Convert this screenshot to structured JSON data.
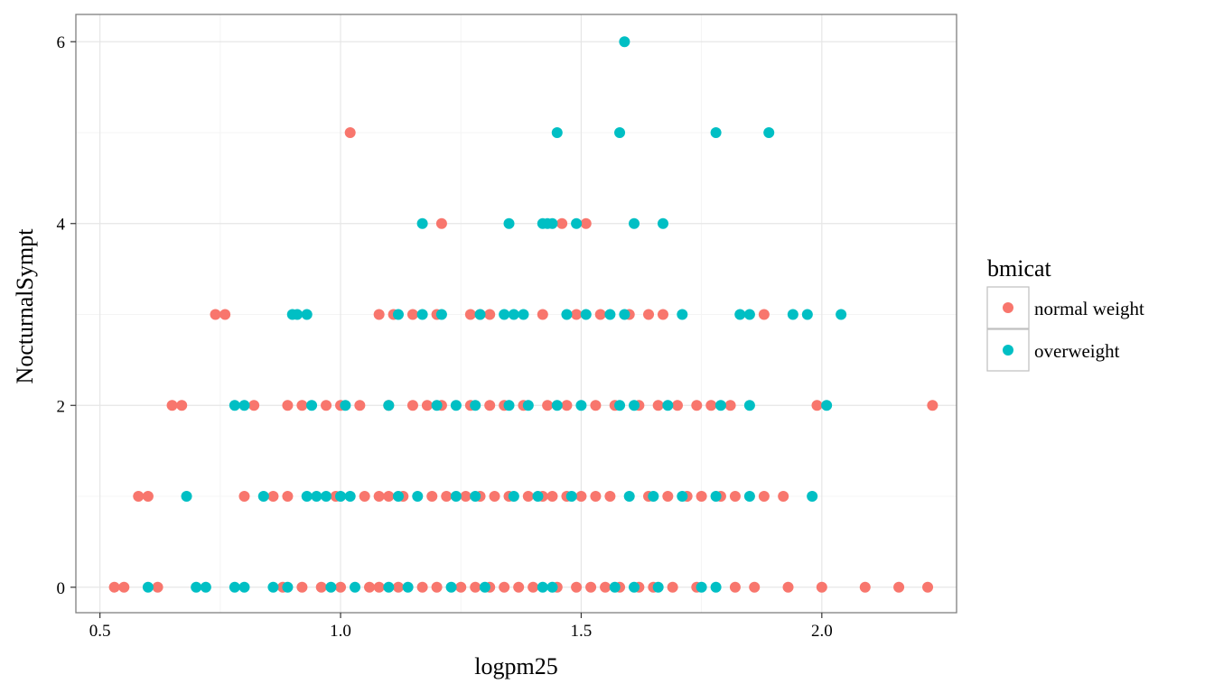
{
  "chart_data": {
    "type": "scatter",
    "title": "",
    "xlabel": "logpm25",
    "ylabel": "NocturnalSympt",
    "xlim": [
      0.45,
      2.28
    ],
    "ylim": [
      -0.28,
      6.3
    ],
    "x_ticks": [
      0.5,
      1.0,
      1.5,
      2.0
    ],
    "x_tick_labels": [
      "0.5",
      "1.0",
      "1.5",
      "2.0"
    ],
    "y_ticks": [
      0,
      2,
      4,
      6
    ],
    "y_tick_labels": [
      "0",
      "2",
      "4",
      "6"
    ],
    "grid": true,
    "legend": {
      "title": "bmicat",
      "placement": "right",
      "entries": [
        "normal weight",
        "overweight"
      ]
    },
    "series": [
      {
        "name": "normal weight",
        "color": "#F8766D",
        "points": [
          [
            0.53,
            0
          ],
          [
            0.55,
            0
          ],
          [
            0.62,
            0
          ],
          [
            0.88,
            0
          ],
          [
            0.92,
            0
          ],
          [
            0.96,
            0
          ],
          [
            1.0,
            0
          ],
          [
            1.06,
            0
          ],
          [
            1.08,
            0
          ],
          [
            1.12,
            0
          ],
          [
            1.17,
            0
          ],
          [
            1.2,
            0
          ],
          [
            1.25,
            0
          ],
          [
            1.28,
            0
          ],
          [
            1.31,
            0
          ],
          [
            1.34,
            0
          ],
          [
            1.37,
            0
          ],
          [
            1.4,
            0
          ],
          [
            1.45,
            0
          ],
          [
            1.49,
            0
          ],
          [
            1.52,
            0
          ],
          [
            1.55,
            0
          ],
          [
            1.58,
            0
          ],
          [
            1.62,
            0
          ],
          [
            1.65,
            0
          ],
          [
            1.69,
            0
          ],
          [
            1.74,
            0
          ],
          [
            1.82,
            0
          ],
          [
            1.86,
            0
          ],
          [
            1.93,
            0
          ],
          [
            2.0,
            0
          ],
          [
            2.09,
            0
          ],
          [
            2.16,
            0
          ],
          [
            2.22,
            0
          ],
          [
            0.58,
            1
          ],
          [
            0.6,
            1
          ],
          [
            0.8,
            1
          ],
          [
            0.86,
            1
          ],
          [
            0.89,
            1
          ],
          [
            0.99,
            1
          ],
          [
            1.05,
            1
          ],
          [
            1.08,
            1
          ],
          [
            1.1,
            1
          ],
          [
            1.13,
            1
          ],
          [
            1.19,
            1
          ],
          [
            1.22,
            1
          ],
          [
            1.26,
            1
          ],
          [
            1.29,
            1
          ],
          [
            1.32,
            1
          ],
          [
            1.35,
            1
          ],
          [
            1.39,
            1
          ],
          [
            1.42,
            1
          ],
          [
            1.44,
            1
          ],
          [
            1.47,
            1
          ],
          [
            1.5,
            1
          ],
          [
            1.53,
            1
          ],
          [
            1.56,
            1
          ],
          [
            1.64,
            1
          ],
          [
            1.68,
            1
          ],
          [
            1.72,
            1
          ],
          [
            1.75,
            1
          ],
          [
            1.79,
            1
          ],
          [
            1.82,
            1
          ],
          [
            1.88,
            1
          ],
          [
            1.92,
            1
          ],
          [
            0.65,
            2
          ],
          [
            0.67,
            2
          ],
          [
            0.82,
            2
          ],
          [
            0.89,
            2
          ],
          [
            0.92,
            2
          ],
          [
            0.97,
            2
          ],
          [
            1.0,
            2
          ],
          [
            1.04,
            2
          ],
          [
            1.1,
            2
          ],
          [
            1.15,
            2
          ],
          [
            1.18,
            2
          ],
          [
            1.21,
            2
          ],
          [
            1.27,
            2
          ],
          [
            1.31,
            2
          ],
          [
            1.34,
            2
          ],
          [
            1.38,
            2
          ],
          [
            1.43,
            2
          ],
          [
            1.47,
            2
          ],
          [
            1.53,
            2
          ],
          [
            1.57,
            2
          ],
          [
            1.62,
            2
          ],
          [
            1.66,
            2
          ],
          [
            1.7,
            2
          ],
          [
            1.74,
            2
          ],
          [
            1.77,
            2
          ],
          [
            1.81,
            2
          ],
          [
            1.99,
            2
          ],
          [
            2.23,
            2
          ],
          [
            0.74,
            3
          ],
          [
            0.76,
            3
          ],
          [
            1.08,
            3
          ],
          [
            1.11,
            3
          ],
          [
            1.15,
            3
          ],
          [
            1.2,
            3
          ],
          [
            1.27,
            3
          ],
          [
            1.29,
            3
          ],
          [
            1.31,
            3
          ],
          [
            1.42,
            3
          ],
          [
            1.49,
            3
          ],
          [
            1.54,
            3
          ],
          [
            1.6,
            3
          ],
          [
            1.64,
            3
          ],
          [
            1.67,
            3
          ],
          [
            1.88,
            3
          ],
          [
            1.02,
            5
          ],
          [
            1.21,
            4
          ],
          [
            1.46,
            4
          ],
          [
            1.51,
            4
          ]
        ]
      },
      {
        "name": "overweight",
        "color": "#00BFC4",
        "points": [
          [
            0.6,
            0
          ],
          [
            0.7,
            0
          ],
          [
            0.72,
            0
          ],
          [
            0.78,
            0
          ],
          [
            0.8,
            0
          ],
          [
            0.86,
            0
          ],
          [
            0.89,
            0
          ],
          [
            0.98,
            0
          ],
          [
            1.03,
            0
          ],
          [
            1.1,
            0
          ],
          [
            1.14,
            0
          ],
          [
            1.23,
            0
          ],
          [
            1.3,
            0
          ],
          [
            1.42,
            0
          ],
          [
            1.44,
            0
          ],
          [
            1.57,
            0
          ],
          [
            1.61,
            0
          ],
          [
            1.66,
            0
          ],
          [
            1.75,
            0
          ],
          [
            1.78,
            0
          ],
          [
            0.68,
            1
          ],
          [
            0.84,
            1
          ],
          [
            0.93,
            1
          ],
          [
            0.95,
            1
          ],
          [
            0.97,
            1
          ],
          [
            1.0,
            1
          ],
          [
            1.02,
            1
          ],
          [
            1.12,
            1
          ],
          [
            1.16,
            1
          ],
          [
            1.24,
            1
          ],
          [
            1.28,
            1
          ],
          [
            1.36,
            1
          ],
          [
            1.41,
            1
          ],
          [
            1.48,
            1
          ],
          [
            1.6,
            1
          ],
          [
            1.65,
            1
          ],
          [
            1.71,
            1
          ],
          [
            1.78,
            1
          ],
          [
            1.85,
            1
          ],
          [
            1.98,
            1
          ],
          [
            0.78,
            2
          ],
          [
            0.8,
            2
          ],
          [
            0.94,
            2
          ],
          [
            1.01,
            2
          ],
          [
            1.1,
            2
          ],
          [
            1.2,
            2
          ],
          [
            1.24,
            2
          ],
          [
            1.28,
            2
          ],
          [
            1.35,
            2
          ],
          [
            1.39,
            2
          ],
          [
            1.45,
            2
          ],
          [
            1.5,
            2
          ],
          [
            1.58,
            2
          ],
          [
            1.61,
            2
          ],
          [
            1.68,
            2
          ],
          [
            1.79,
            2
          ],
          [
            1.85,
            2
          ],
          [
            2.01,
            2
          ],
          [
            0.9,
            3
          ],
          [
            0.91,
            3
          ],
          [
            0.93,
            3
          ],
          [
            1.12,
            3
          ],
          [
            1.17,
            3
          ],
          [
            1.21,
            3
          ],
          [
            1.29,
            3
          ],
          [
            1.34,
            3
          ],
          [
            1.36,
            3
          ],
          [
            1.38,
            3
          ],
          [
            1.47,
            3
          ],
          [
            1.51,
            3
          ],
          [
            1.56,
            3
          ],
          [
            1.59,
            3
          ],
          [
            1.71,
            3
          ],
          [
            1.83,
            3
          ],
          [
            1.85,
            3
          ],
          [
            1.94,
            3
          ],
          [
            1.97,
            3
          ],
          [
            2.04,
            3
          ],
          [
            1.17,
            4
          ],
          [
            1.35,
            4
          ],
          [
            1.42,
            4
          ],
          [
            1.43,
            4
          ],
          [
            1.44,
            4
          ],
          [
            1.49,
            4
          ],
          [
            1.61,
            4
          ],
          [
            1.67,
            4
          ],
          [
            1.45,
            5
          ],
          [
            1.58,
            5
          ],
          [
            1.78,
            5
          ],
          [
            1.89,
            5
          ],
          [
            1.59,
            6
          ]
        ]
      }
    ]
  }
}
